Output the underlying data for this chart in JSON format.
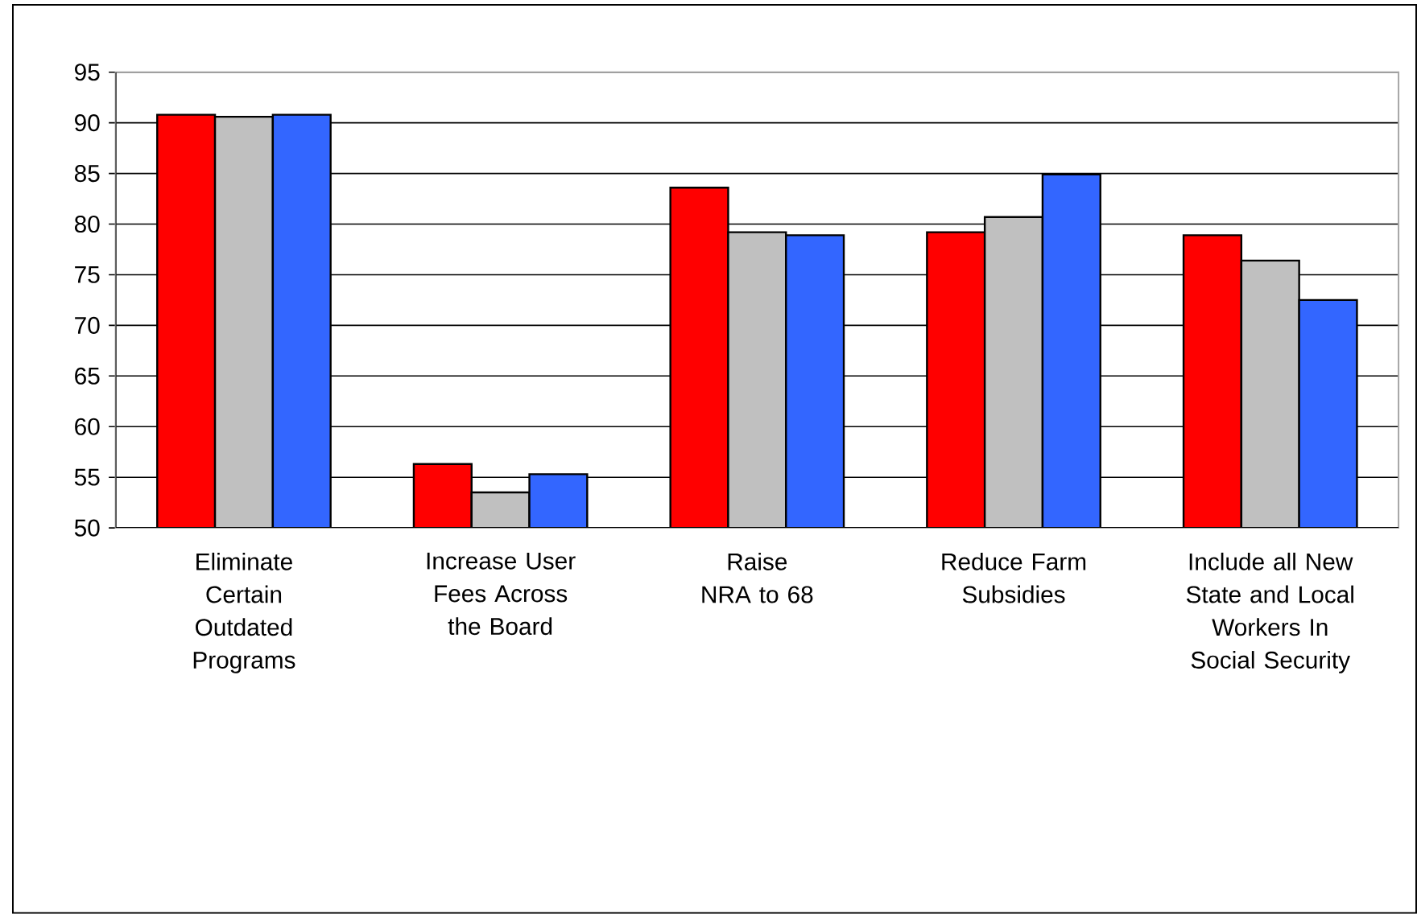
{
  "chart_data": {
    "type": "bar",
    "categories": [
      "Eliminate Certain Outdated Programs",
      "Increase User Fees Across the Board",
      "Raise NRA to 68",
      "Reduce Farm Subsidies",
      "Include all New State and Local Workers In Social Security"
    ],
    "series": [
      {
        "color": "#ff0000",
        "values": [
          90.8,
          56.3,
          83.6,
          79.2,
          78.9
        ]
      },
      {
        "color": "#c0c0c0",
        "values": [
          90.6,
          53.5,
          79.2,
          80.7,
          76.4
        ]
      },
      {
        "color": "#3366ff",
        "values": [
          90.8,
          55.3,
          78.9,
          84.9,
          72.5
        ]
      }
    ],
    "ylim": [
      50,
      95
    ],
    "yticks": [
      50,
      55,
      60,
      65,
      70,
      75,
      80,
      85,
      90,
      95
    ],
    "grid": "y",
    "legend": false
  }
}
